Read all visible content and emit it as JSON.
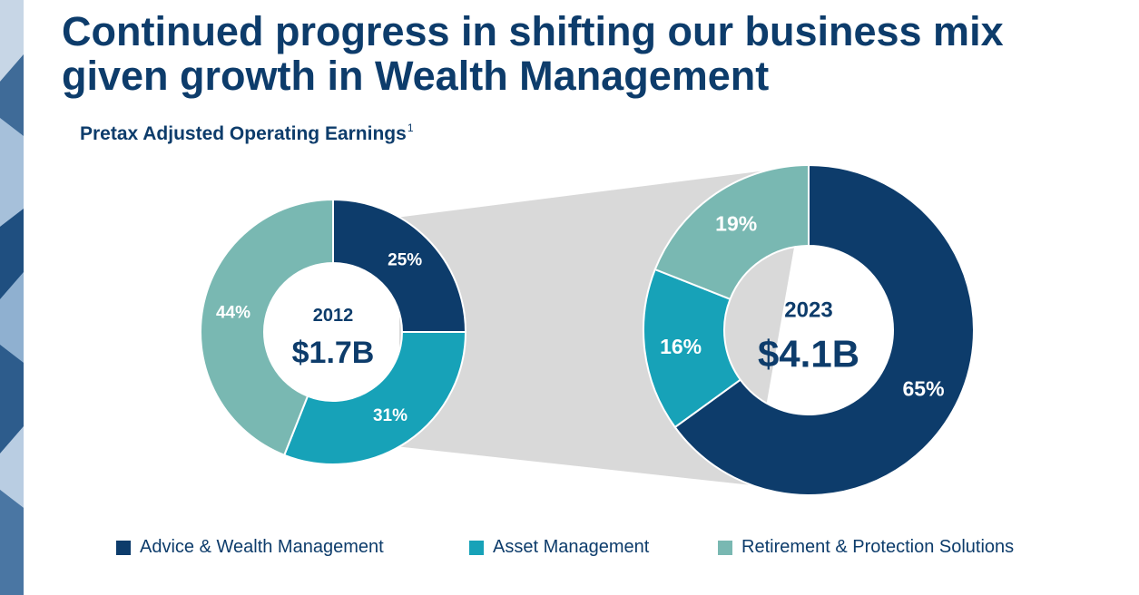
{
  "title": {
    "line1": "Continued progress in shifting our business mix",
    "line2": "given growth in Wealth Management"
  },
  "subtitle": {
    "text": "Pretax Adjusted Operating Earnings",
    "footnote": "1"
  },
  "colors": {
    "advice_wealth": "#0d3c6b",
    "asset_mgmt": "#17a2b8",
    "retirement": "#79b8b2",
    "connector": "#d9d9d9",
    "text_dark": "#0d3c6b"
  },
  "chart_data": [
    {
      "type": "pie",
      "donut": true,
      "center_label_year": "2012",
      "center_label_total": "$1.7B",
      "slices": [
        {
          "series": "Advice & Wealth Management",
          "value": 25,
          "label": "25%"
        },
        {
          "series": "Asset Management",
          "value": 31,
          "label": "31%"
        },
        {
          "series": "Retirement & Protection Solutions",
          "value": 44,
          "label": "44%"
        }
      ]
    },
    {
      "type": "pie",
      "donut": true,
      "center_label_year": "2023",
      "center_label_total": "$4.1B",
      "slices": [
        {
          "series": "Advice & Wealth Management",
          "value": 65,
          "label": "65%"
        },
        {
          "series": "Asset Management",
          "value": 16,
          "label": "16%"
        },
        {
          "series": "Retirement & Protection Solutions",
          "value": 19,
          "label": "19%"
        }
      ]
    }
  ],
  "legend": [
    {
      "label": "Advice & Wealth Management",
      "color": "#0d3c6b"
    },
    {
      "label": "Asset Management",
      "color": "#17a2b8"
    },
    {
      "label": "Retirement & Protection Solutions",
      "color": "#79b8b2"
    }
  ]
}
